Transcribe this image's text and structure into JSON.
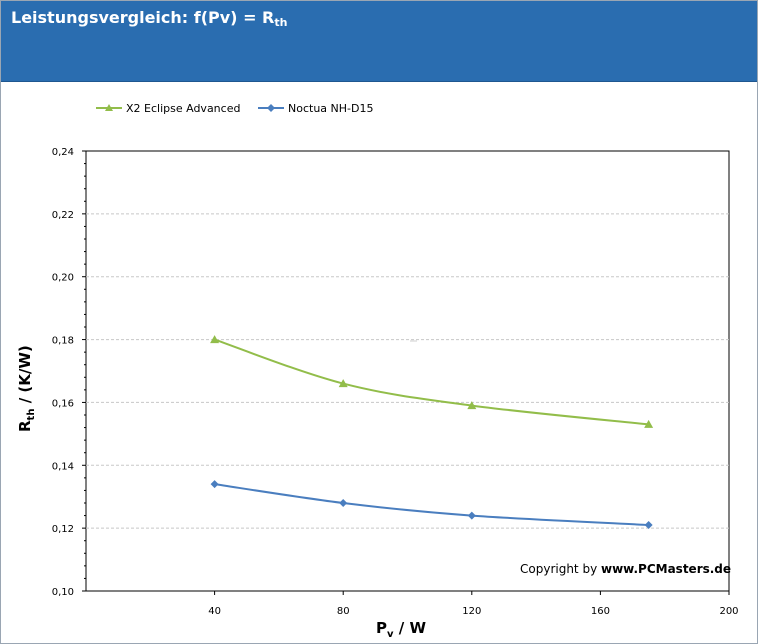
{
  "header": {
    "title_main": "Leistungsvergleich: f(Pv) = R",
    "title_sub": "th"
  },
  "copyright": {
    "prefix": "Copyright by ",
    "site": "www.PCMasters.de"
  },
  "chart_data": {
    "type": "line",
    "xlabel_main": "P",
    "xlabel_sub": "v",
    "xlabel_rest": " / W",
    "ylabel_main": "R",
    "ylabel_sub": "th",
    "ylabel_rest": " / (K/W)",
    "xlim": [
      0,
      200
    ],
    "ylim": [
      0.1,
      0.24
    ],
    "x_ticks": [
      40,
      80,
      120,
      160,
      200
    ],
    "x_tick_labels": [
      "40",
      "80",
      "120",
      "160",
      "200"
    ],
    "y_ticks": [
      0.1,
      0.12,
      0.14,
      0.16,
      0.18,
      0.2,
      0.22,
      0.24
    ],
    "y_tick_labels": [
      "0,10",
      "0,12",
      "0,14",
      "0,16",
      "0,18",
      "0,20",
      "0,22",
      "0,24"
    ],
    "grid": "horizontal-dashed",
    "legend_position": "top-left",
    "series": [
      {
        "name": "X2 Eclipse Advanced",
        "color": "#92bd4a",
        "marker": "triangle",
        "x": [
          40,
          80,
          120,
          175
        ],
        "y": [
          0.18,
          0.166,
          0.159,
          0.153
        ]
      },
      {
        "name": "Noctua NH-D15",
        "color": "#4a7ebf",
        "marker": "diamond",
        "x": [
          40,
          80,
          120,
          175
        ],
        "y": [
          0.134,
          0.128,
          0.124,
          0.121
        ]
      }
    ]
  }
}
